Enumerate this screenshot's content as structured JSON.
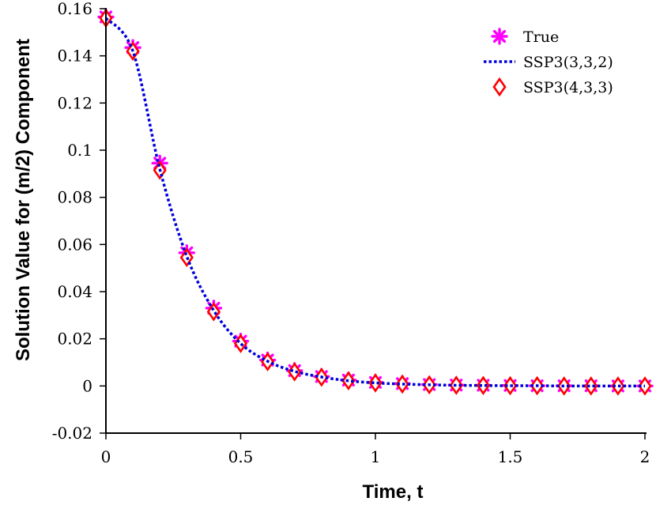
{
  "chart_data": {
    "type": "line",
    "title": "",
    "xlabel": "Time, t",
    "ylabel": "Solution Value for (m/2) Component",
    "xlim": [
      0,
      2
    ],
    "ylim": [
      -0.02,
      0.16
    ],
    "xticks": [
      {
        "value": 0,
        "label": "0"
      },
      {
        "value": 0.5,
        "label": "0.5"
      },
      {
        "value": 1,
        "label": "1"
      },
      {
        "value": 1.5,
        "label": "1.5"
      },
      {
        "value": 2,
        "label": "2"
      }
    ],
    "yticks": [
      {
        "value": -0.02,
        "label": "-0.02"
      },
      {
        "value": 0,
        "label": "0"
      },
      {
        "value": 0.02,
        "label": "0.02"
      },
      {
        "value": 0.04,
        "label": "0.04"
      },
      {
        "value": 0.06,
        "label": "0.06"
      },
      {
        "value": 0.08,
        "label": "0.08"
      },
      {
        "value": 0.1,
        "label": "0.1"
      },
      {
        "value": 0.12,
        "label": "0.12"
      },
      {
        "value": 0.14,
        "label": "0.14"
      },
      {
        "value": 0.16,
        "label": "0.16"
      }
    ],
    "grid": false,
    "legend_position": "top-right",
    "x": [
      0,
      0.1,
      0.2,
      0.3,
      0.4,
      0.5,
      0.6,
      0.7,
      0.8,
      0.9,
      1.0,
      1.1,
      1.2,
      1.3,
      1.4,
      1.5,
      1.6,
      1.7,
      1.8,
      1.9,
      2.0
    ],
    "series": [
      {
        "name": "True",
        "marker": "asterisk",
        "color": "#ff00ff",
        "values": [
          0.1565,
          0.1435,
          0.0945,
          0.0565,
          0.033,
          0.019,
          0.011,
          0.0065,
          0.004,
          0.0025,
          0.0015,
          0.001,
          0.0006,
          0.0004,
          0.0003,
          0.0002,
          0.0001,
          0.0001,
          0.0001,
          0.0,
          0.0
        ]
      },
      {
        "name": "SSP3(3,3,2)",
        "marker": "dotted-line",
        "color": "#0000dd",
        "values": [
          0.156,
          0.142,
          0.092,
          0.055,
          0.032,
          0.018,
          0.0105,
          0.0062,
          0.0038,
          0.0022,
          0.0013,
          0.0008,
          0.0005,
          0.0003,
          0.0002,
          0.0001,
          0.0001,
          0.0,
          0.0,
          0.0,
          0.0
        ]
      },
      {
        "name": "SSP3(4,3,3)",
        "marker": "diamond",
        "color": "#ff0000",
        "values": [
          0.156,
          0.142,
          0.0915,
          0.0545,
          0.0315,
          0.018,
          0.0103,
          0.006,
          0.0037,
          0.0022,
          0.0013,
          0.0008,
          0.0005,
          0.0003,
          0.0002,
          0.0001,
          0.0001,
          0.0,
          0.0,
          0.0,
          0.0
        ]
      }
    ]
  }
}
